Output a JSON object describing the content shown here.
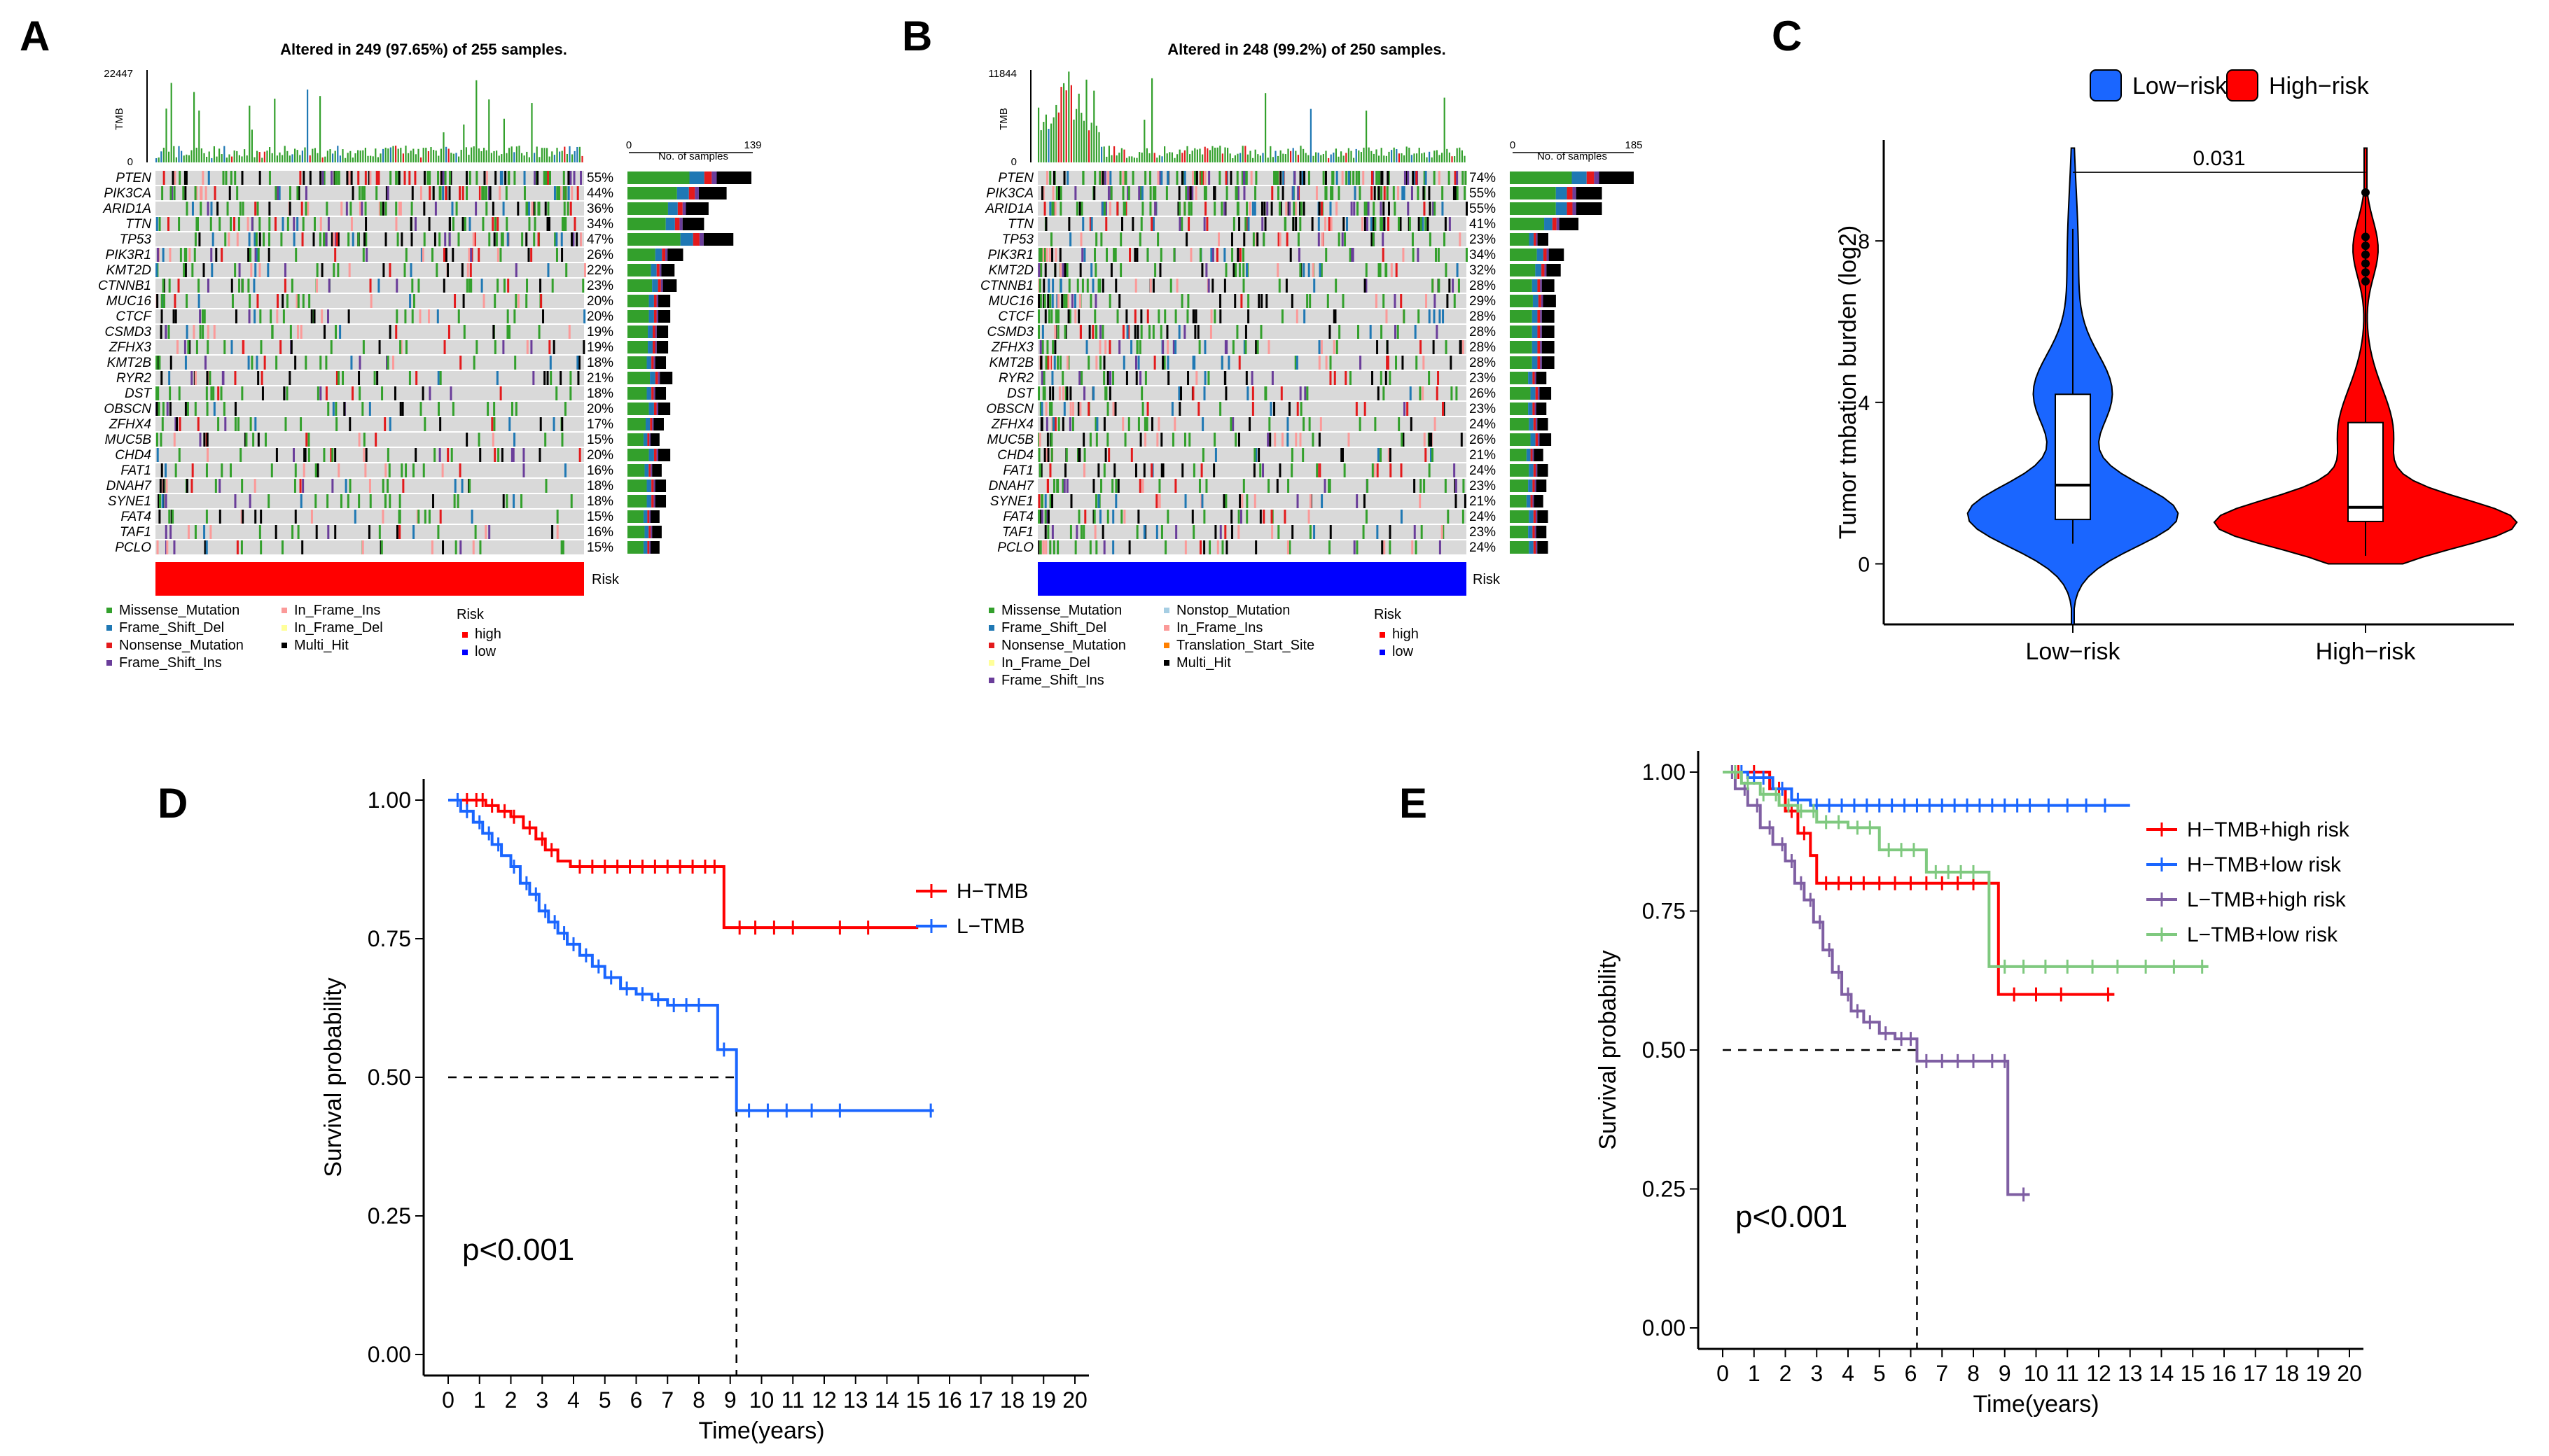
{
  "panels": {
    "A": {
      "label": "A",
      "title": "Altered in 249 (97.65%) of 255 samples.",
      "tmb_max": "22447",
      "tmb_min": "0",
      "tmb_axis": "TMB",
      "samples_label": "No. of samples",
      "samples_min": "0",
      "samples_max": "139",
      "risk_label": "Risk",
      "risk_color": "#ff0000",
      "genes": [
        "PTEN",
        "PIK3CA",
        "ARID1A",
        "TTN",
        "TP53",
        "PIK3R1",
        "KMT2D",
        "CTNNB1",
        "MUC16",
        "CTCF",
        "CSMD3",
        "ZFHX3",
        "KMT2B",
        "RYR2",
        "DST",
        "OBSCN",
        "ZFHX4",
        "MUC5B",
        "CHD4",
        "FAT1",
        "DNAH7",
        "SYNE1",
        "FAT4",
        "TAF1",
        "PCLO"
      ],
      "pcts": [
        "55%",
        "44%",
        "36%",
        "34%",
        "47%",
        "26%",
        "22%",
        "23%",
        "20%",
        "20%",
        "19%",
        "19%",
        "18%",
        "21%",
        "18%",
        "20%",
        "17%",
        "15%",
        "20%",
        "16%",
        "18%",
        "18%",
        "15%",
        "16%",
        "15%"
      ],
      "legend": [
        "Missense_Mutation",
        "Frame_Shift_Del",
        "Nonsense_Mutation",
        "Frame_Shift_Ins",
        "In_Frame_Ins",
        "In_Frame_Del",
        "Multi_Hit"
      ],
      "legend_risk_title": "Risk",
      "legend_risk": [
        "high",
        "low"
      ]
    },
    "B": {
      "label": "B",
      "title": "Altered in 248 (99.2%) of 250 samples.",
      "tmb_max": "11844",
      "tmb_min": "0",
      "tmb_axis": "TMB",
      "samples_label": "No. of samples",
      "samples_min": "0",
      "samples_max": "185",
      "risk_label": "Risk",
      "risk_color": "#0000ff",
      "genes": [
        "PTEN",
        "PIK3CA",
        "ARID1A",
        "TTN",
        "TP53",
        "PIK3R1",
        "KMT2D",
        "CTNNB1",
        "MUC16",
        "CTCF",
        "CSMD3",
        "ZFHX3",
        "KMT2B",
        "RYR2",
        "DST",
        "OBSCN",
        "ZFHX4",
        "MUC5B",
        "CHD4",
        "FAT1",
        "DNAH7",
        "SYNE1",
        "FAT4",
        "TAF1",
        "PCLO"
      ],
      "pcts": [
        "74%",
        "55%",
        "55%",
        "41%",
        "23%",
        "34%",
        "32%",
        "28%",
        "29%",
        "28%",
        "28%",
        "28%",
        "28%",
        "23%",
        "26%",
        "23%",
        "24%",
        "26%",
        "21%",
        "24%",
        "23%",
        "21%",
        "24%",
        "23%",
        "24%"
      ],
      "legend": [
        "Missense_Mutation",
        "Frame_Shift_Del",
        "Nonsense_Mutation",
        "In_Frame_Del",
        "Frame_Shift_Ins",
        "Nonstop_Mutation",
        "In_Frame_Ins",
        "Translation_Start_Site",
        "Multi_Hit"
      ],
      "legend_risk_title": "Risk",
      "legend_risk": [
        "high",
        "low"
      ]
    },
    "C": {
      "label": "C"
    },
    "D": {
      "label": "D"
    },
    "E": {
      "label": "E"
    }
  },
  "colors": {
    "missense": "#33a02c",
    "frame_del": "#1f78b4",
    "nonsense": "#e31a1c",
    "frame_ins": "#6a3d9a",
    "inframe_ins": "#fb9a99",
    "inframe_del": "#ffff99",
    "multi": "#000000",
    "nonstop": "#a6cee3",
    "tss": "#ff7f00",
    "bg": "#d9d9d9"
  },
  "chart_data": [
    {
      "type": "violin",
      "panel": "C",
      "legend": [
        "Low−risk",
        "High−risk"
      ],
      "categories": [
        "Low−risk",
        "High−risk"
      ],
      "colors": [
        "#1a66ff",
        "#ff0000"
      ],
      "ylabel": "Tumor tmbation burden (log2)",
      "yticks": [
        0,
        4,
        8
      ],
      "ylim": [
        -1.5,
        10.5
      ],
      "pvalue": "0.031",
      "box": [
        {
          "min": 0.5,
          "q1": 1.1,
          "median": 1.95,
          "q3": 4.2,
          "max": 8.3
        },
        {
          "min": 0.2,
          "q1": 1.05,
          "median": 1.4,
          "q3": 3.5,
          "max": 9.3
        }
      ],
      "violin_range": [
        [
          -1.5,
          10.3
        ],
        [
          0.0,
          10.3
        ]
      ]
    },
    {
      "type": "line",
      "panel": "D",
      "xlabel": "Time(years)",
      "ylabel": "Survival probability",
      "xticks": [
        0,
        1,
        2,
        3,
        4,
        5,
        6,
        7,
        8,
        9,
        10,
        11,
        12,
        13,
        14,
        15,
        16,
        17,
        18,
        19,
        20
      ],
      "yticks": [
        "0.00",
        "0.25",
        "0.50",
        "0.75",
        "1.00"
      ],
      "xlim": [
        0,
        20
      ],
      "ylim": [
        0,
        1
      ],
      "pvalue": "p<0.001",
      "median_line": {
        "y": 0.5,
        "x": 9.2
      },
      "series": [
        {
          "name": "H−TMB",
          "color": "#ff0000",
          "steps": [
            [
              0,
              1.0
            ],
            [
              1.2,
              0.99
            ],
            [
              1.6,
              0.98
            ],
            [
              2.0,
              0.97
            ],
            [
              2.4,
              0.95
            ],
            [
              2.8,
              0.93
            ],
            [
              3.1,
              0.91
            ],
            [
              3.5,
              0.89
            ],
            [
              3.9,
              0.88
            ],
            [
              8.8,
              0.77
            ],
            [
              15.0,
              0.77
            ]
          ],
          "censor": [
            0.6,
            0.9,
            1.1,
            1.4,
            1.8,
            2.1,
            2.6,
            3.0,
            3.3,
            4.2,
            4.6,
            5.0,
            5.4,
            5.8,
            6.2,
            6.6,
            7.0,
            7.4,
            7.8,
            8.2,
            8.5,
            9.3,
            9.8,
            10.4,
            11.0,
            12.5,
            13.4
          ]
        },
        {
          "name": "L−TMB",
          "color": "#1a66ff",
          "steps": [
            [
              0,
              1.0
            ],
            [
              0.4,
              0.98
            ],
            [
              0.8,
              0.96
            ],
            [
              1.1,
              0.94
            ],
            [
              1.4,
              0.92
            ],
            [
              1.7,
              0.9
            ],
            [
              2.0,
              0.88
            ],
            [
              2.3,
              0.85
            ],
            [
              2.6,
              0.83
            ],
            [
              2.9,
              0.8
            ],
            [
              3.2,
              0.78
            ],
            [
              3.5,
              0.76
            ],
            [
              3.8,
              0.74
            ],
            [
              4.2,
              0.72
            ],
            [
              4.6,
              0.7
            ],
            [
              5.0,
              0.68
            ],
            [
              5.5,
              0.66
            ],
            [
              6.0,
              0.65
            ],
            [
              6.5,
              0.64
            ],
            [
              7.0,
              0.63
            ],
            [
              8.6,
              0.55
            ],
            [
              9.2,
              0.44
            ],
            [
              15.5,
              0.44
            ]
          ],
          "censor": [
            0.3,
            0.6,
            1.0,
            1.3,
            1.6,
            2.1,
            2.5,
            2.8,
            3.1,
            3.4,
            3.7,
            4.0,
            4.4,
            4.8,
            5.2,
            5.7,
            6.2,
            6.7,
            7.2,
            7.6,
            8.0,
            8.8,
            9.6,
            10.2,
            10.8,
            11.6,
            12.5,
            15.4
          ]
        }
      ]
    },
    {
      "type": "line",
      "panel": "E",
      "xlabel": "Time(years)",
      "ylabel": "Survival probability",
      "xticks": [
        0,
        1,
        2,
        3,
        4,
        5,
        6,
        7,
        8,
        9,
        10,
        11,
        12,
        13,
        14,
        15,
        16,
        17,
        18,
        19,
        20
      ],
      "yticks": [
        "0.00",
        "0.25",
        "0.50",
        "0.75",
        "1.00"
      ],
      "xlim": [
        0,
        20
      ],
      "ylim": [
        0,
        1
      ],
      "pvalue": "p<0.001",
      "median_line": {
        "y": 0.5,
        "x": 6.2
      },
      "series": [
        {
          "name": "H−TMB+high risk",
          "color": "#ff0000",
          "steps": [
            [
              0,
              1.0
            ],
            [
              1.5,
              0.97
            ],
            [
              2.0,
              0.93
            ],
            [
              2.4,
              0.89
            ],
            [
              2.8,
              0.85
            ],
            [
              3.0,
              0.8
            ],
            [
              8.8,
              0.6
            ],
            [
              12.5,
              0.6
            ]
          ],
          "censor": [
            0.5,
            1.0,
            1.8,
            2.2,
            2.6,
            3.3,
            3.7,
            4.1,
            4.5,
            5.0,
            5.5,
            6.0,
            6.5,
            7.0,
            7.5,
            8.0,
            8.5,
            9.3,
            10.0,
            10.8,
            12.3
          ]
        },
        {
          "name": "H−TMB+low risk",
          "color": "#1a66ff",
          "steps": [
            [
              0,
              1.0
            ],
            [
              0.8,
              0.99
            ],
            [
              1.6,
              0.97
            ],
            [
              2.2,
              0.95
            ],
            [
              2.8,
              0.94
            ],
            [
              13.0,
              0.94
            ]
          ],
          "censor": [
            0.3,
            0.6,
            1.0,
            1.3,
            1.9,
            2.4,
            3.0,
            3.4,
            3.8,
            4.2,
            4.6,
            5.0,
            5.4,
            5.8,
            6.2,
            6.6,
            7.0,
            7.4,
            7.8,
            8.2,
            8.6,
            9.0,
            9.4,
            9.8,
            10.4,
            11.0,
            11.6,
            12.2
          ]
        },
        {
          "name": "L−TMB+high risk",
          "color": "#7f5fa3",
          "steps": [
            [
              0,
              1.0
            ],
            [
              0.4,
              0.97
            ],
            [
              0.8,
              0.94
            ],
            [
              1.2,
              0.9
            ],
            [
              1.6,
              0.87
            ],
            [
              2.0,
              0.84
            ],
            [
              2.3,
              0.8
            ],
            [
              2.6,
              0.77
            ],
            [
              2.9,
              0.73
            ],
            [
              3.2,
              0.68
            ],
            [
              3.5,
              0.64
            ],
            [
              3.8,
              0.6
            ],
            [
              4.1,
              0.57
            ],
            [
              4.5,
              0.55
            ],
            [
              5.0,
              0.53
            ],
            [
              5.5,
              0.52
            ],
            [
              6.2,
              0.48
            ],
            [
              9.1,
              0.24
            ],
            [
              9.8,
              0.24
            ]
          ],
          "censor": [
            0.3,
            0.7,
            1.1,
            1.5,
            1.9,
            2.2,
            2.5,
            2.8,
            3.1,
            3.4,
            3.7,
            4.0,
            4.3,
            4.7,
            5.2,
            5.7,
            6.0,
            6.5,
            7.0,
            7.5,
            8.0,
            8.6,
            9.0,
            9.6
          ]
        },
        {
          "name": "L−TMB+low risk",
          "color": "#7fc97f",
          "steps": [
            [
              0,
              1.0
            ],
            [
              0.6,
              0.98
            ],
            [
              1.2,
              0.96
            ],
            [
              1.8,
              0.94
            ],
            [
              2.4,
              0.93
            ],
            [
              3.0,
              0.91
            ],
            [
              4.0,
              0.9
            ],
            [
              5.0,
              0.86
            ],
            [
              6.5,
              0.82
            ],
            [
              8.5,
              0.65
            ],
            [
              15.5,
              0.65
            ]
          ],
          "censor": [
            0.4,
            0.8,
            1.3,
            1.7,
            2.1,
            2.5,
            2.9,
            3.3,
            3.7,
            4.3,
            4.7,
            5.3,
            5.7,
            6.1,
            6.8,
            7.2,
            7.6,
            8.0,
            9.0,
            9.6,
            10.3,
            11.0,
            11.8,
            12.6,
            13.5,
            14.4,
            15.3
          ]
        }
      ]
    }
  ]
}
